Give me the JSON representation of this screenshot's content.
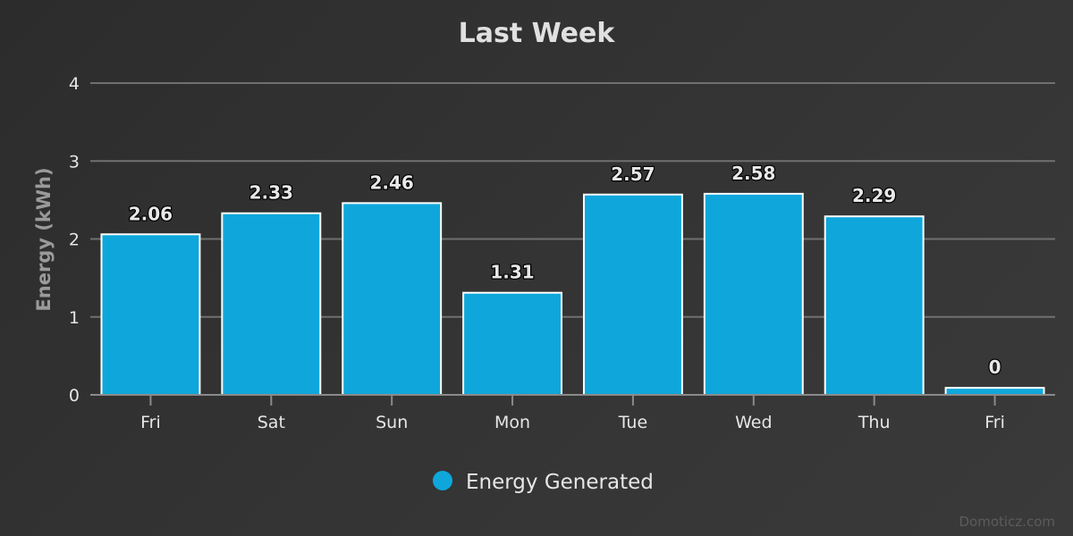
{
  "chart_data": {
    "type": "bar",
    "title": "Last Week",
    "xlabel": "",
    "ylabel": "Energy (kWh)",
    "categories": [
      "Fri",
      "Sat",
      "Sun",
      "Mon",
      "Tue",
      "Wed",
      "Thu",
      "Fri"
    ],
    "series": [
      {
        "name": "Energy Generated",
        "color": "#0fa7db",
        "values": [
          2.06,
          2.33,
          2.46,
          1.31,
          2.57,
          2.58,
          2.29,
          0.09
        ],
        "labels": [
          "2.06",
          "2.33",
          "2.46",
          "1.31",
          "2.57",
          "2.58",
          "2.29",
          "0"
        ]
      }
    ],
    "ylim": [
      0,
      4
    ],
    "yticks": [
      "0",
      "1",
      "2",
      "3",
      "4"
    ],
    "grid": true,
    "legend_position": "bottom-center"
  },
  "credits": "Domoticz.com"
}
